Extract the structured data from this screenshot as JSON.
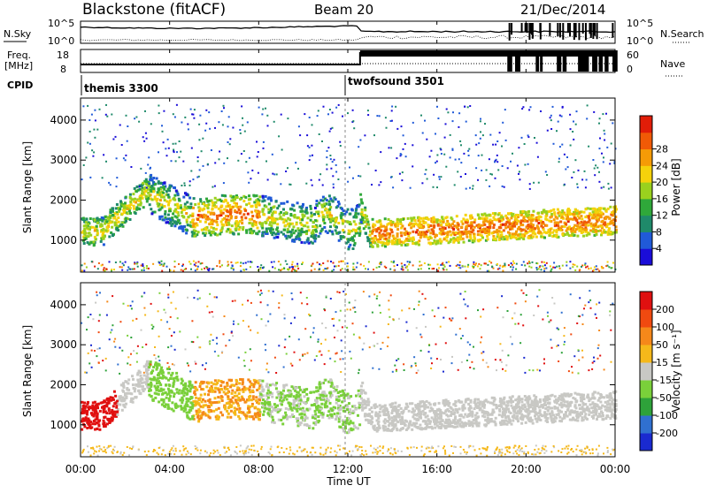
{
  "header": {
    "station": "Blackstone (fitACF)",
    "beam": "Beam 20",
    "date": "21/Dec/2014"
  },
  "panels": {
    "nsky": {
      "label": "N.Sky",
      "ticks": [
        "10^5",
        "10^0"
      ]
    },
    "nsearch": {
      "label": "N.Search",
      "ticks": [
        "10^5",
        "10^0"
      ]
    },
    "freq": {
      "label_top": "Freq.",
      "label_bottom": "[MHz]",
      "ticks": [
        18,
        8
      ],
      "step_time_h": 12.55
    },
    "nave": {
      "label": "Nave",
      "ticks": [
        60,
        0
      ]
    },
    "cpid": {
      "label": "CPID",
      "modes": [
        {
          "name": "themis 3300",
          "start_h": 0
        },
        {
          "name": "twofsound 3501",
          "start_h": 12.0
        }
      ]
    }
  },
  "chart_data": [
    {
      "type": "heatmap",
      "ylabel": "Slant Range [km]",
      "yticks": [
        1000,
        2000,
        3000,
        4000
      ],
      "ylim": [
        200,
        4550
      ],
      "xlim": [
        0,
        24
      ],
      "colorbar": {
        "label": "Power [dB]",
        "ticks": [
          4,
          8,
          12,
          16,
          20,
          24,
          28
        ]
      },
      "colors": [
        "#1a0dd8",
        "#205ad8",
        "#1f8a6a",
        "#2fa83a",
        "#9ad11e",
        "#f5d20b",
        "#f59b06",
        "#f05a06",
        "#e11d08"
      ]
    },
    {
      "type": "heatmap",
      "ylabel": "Slant Range [km]",
      "yticks": [
        1000,
        2000,
        3000,
        4000
      ],
      "ylim": [
        200,
        4550
      ],
      "xlim": [
        0,
        24
      ],
      "colorbar": {
        "label": "Velocity [m s⁻¹]",
        "ticks": [
          200,
          100,
          50,
          15,
          -15,
          -50,
          -100,
          -200
        ]
      },
      "colors": [
        "#1a2ad0",
        "#3070d0",
        "#2ea23a",
        "#7ad03a",
        "#c8c8c4",
        "#f5b81a",
        "#f5881a",
        "#f04a10",
        "#e01010"
      ]
    }
  ],
  "xaxis": {
    "label": "Time UT",
    "ticks": [
      "00:00",
      "04:00",
      "08:00",
      "12:00",
      "16:00",
      "20:00",
      "00:00"
    ]
  }
}
